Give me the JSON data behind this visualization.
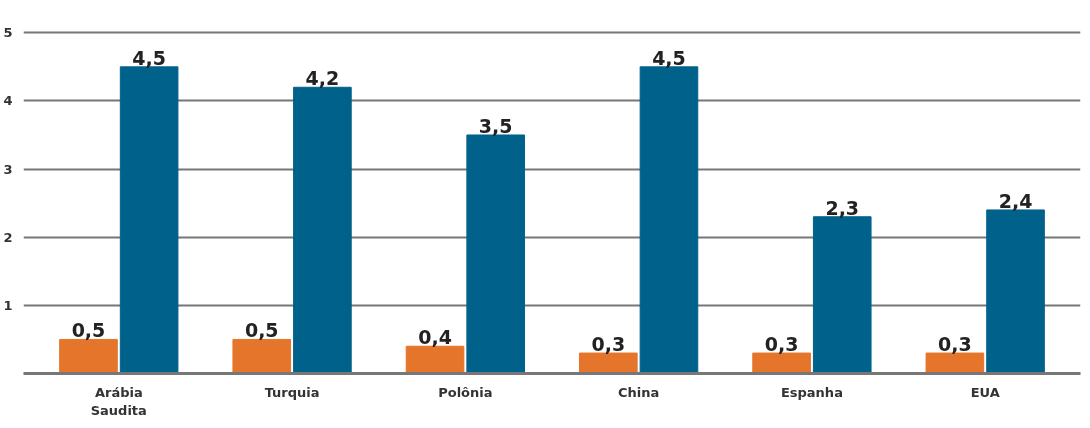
{
  "chart_data": {
    "type": "bar",
    "categories": [
      "Arábia\nSaudita",
      "Turquia",
      "Polônia",
      "China",
      "Espanha",
      "EUA"
    ],
    "series": [
      {
        "color": "#e4752a",
        "values": [
          0.5,
          0.5,
          0.4,
          0.3,
          0.3,
          0.3
        ],
        "value_labels": [
          "0,5",
          "0,5",
          "0,4",
          "0,3",
          "0,3",
          "0,3"
        ]
      },
      {
        "color": "#00628a",
        "values": [
          4.5,
          4.2,
          3.5,
          4.5,
          2.3,
          2.4
        ],
        "value_labels": [
          "4,5",
          "4,2",
          "3,5",
          "4,5",
          "2,3",
          "2,4"
        ]
      }
    ],
    "ylim": [
      0,
      5
    ],
    "yticks": [
      1,
      2,
      3,
      4,
      5
    ],
    "grid": "y"
  }
}
